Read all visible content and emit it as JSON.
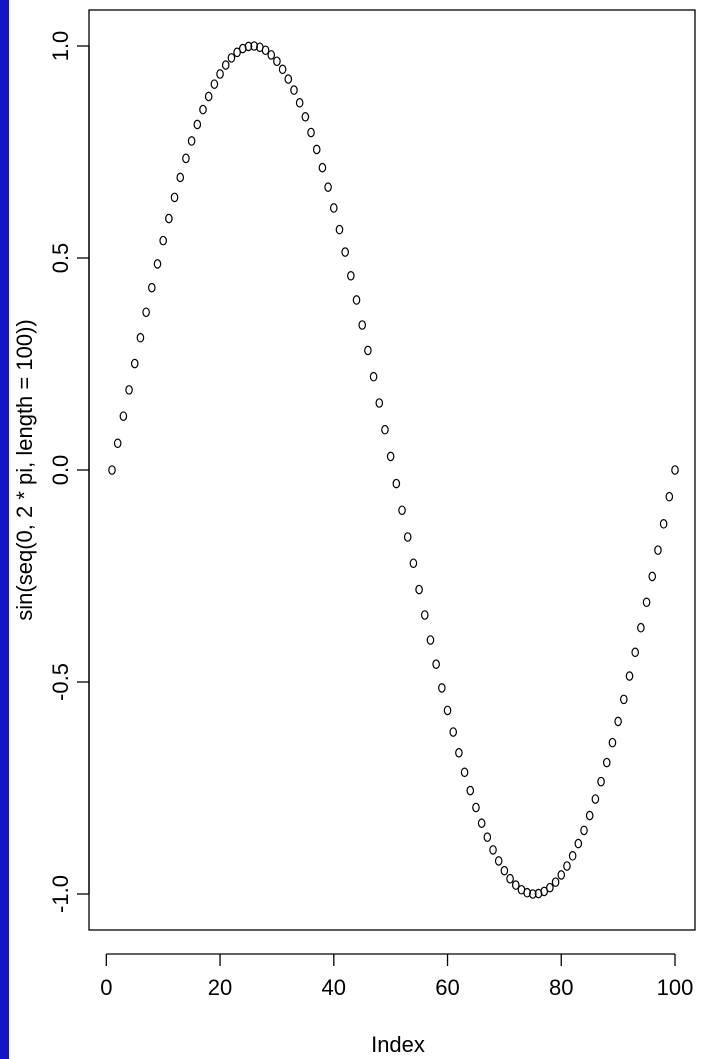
{
  "chart_data": {
    "type": "scatter",
    "title": "",
    "xlabel": "Index",
    "ylabel": "sin(seq(0, 2 * pi, length = 100))",
    "x_range": [
      1,
      100
    ],
    "y_range": [
      -1,
      1
    ],
    "x_ticks": [
      0,
      20,
      40,
      60,
      80,
      100
    ],
    "x_tick_labels": [
      "0",
      "20",
      "40",
      "60",
      "80",
      "100"
    ],
    "y_ticks": [
      -1.0,
      -0.5,
      0.0,
      0.5,
      1.0
    ],
    "y_tick_labels": [
      "-1.0",
      "-0.5",
      "0.0",
      "0.5",
      "1.0"
    ],
    "grid": false,
    "marker": "open-circle",
    "series": [
      {
        "x": [
          1,
          2,
          3,
          4,
          5,
          6,
          7,
          8,
          9,
          10,
          11,
          12,
          13,
          14,
          15,
          16,
          17,
          18,
          19,
          20,
          21,
          22,
          23,
          24,
          25,
          26,
          27,
          28,
          29,
          30,
          31,
          32,
          33,
          34,
          35,
          36,
          37,
          38,
          39,
          40,
          41,
          42,
          43,
          44,
          45,
          46,
          47,
          48,
          49,
          50,
          51,
          52,
          53,
          54,
          55,
          56,
          57,
          58,
          59,
          60,
          61,
          62,
          63,
          64,
          65,
          66,
          67,
          68,
          69,
          70,
          71,
          72,
          73,
          74,
          75,
          76,
          77,
          78,
          79,
          80,
          81,
          82,
          83,
          84,
          85,
          86,
          87,
          88,
          89,
          90,
          91,
          92,
          93,
          94,
          95,
          96,
          97,
          98,
          99,
          100
        ],
        "y": [
          0.0,
          0.063,
          0.127,
          0.189,
          0.251,
          0.312,
          0.372,
          0.43,
          0.486,
          0.541,
          0.593,
          0.643,
          0.69,
          0.735,
          0.776,
          0.815,
          0.85,
          0.881,
          0.91,
          0.934,
          0.955,
          0.972,
          0.985,
          0.994,
          0.999,
          1.0,
          0.997,
          0.99,
          0.979,
          0.964,
          0.945,
          0.922,
          0.896,
          0.866,
          0.833,
          0.796,
          0.756,
          0.713,
          0.667,
          0.618,
          0.567,
          0.514,
          0.458,
          0.401,
          0.342,
          0.282,
          0.22,
          0.158,
          0.095,
          0.032,
          -0.032,
          -0.095,
          -0.158,
          -0.22,
          -0.282,
          -0.342,
          -0.401,
          -0.458,
          -0.514,
          -0.567,
          -0.618,
          -0.667,
          -0.713,
          -0.756,
          -0.796,
          -0.833,
          -0.866,
          -0.896,
          -0.922,
          -0.945,
          -0.964,
          -0.979,
          -0.99,
          -0.997,
          -1.0,
          -0.999,
          -0.994,
          -0.985,
          -0.972,
          -0.955,
          -0.934,
          -0.91,
          -0.881,
          -0.85,
          -0.815,
          -0.776,
          -0.735,
          -0.69,
          -0.643,
          -0.593,
          -0.541,
          -0.486,
          -0.43,
          -0.372,
          -0.312,
          -0.251,
          -0.189,
          -0.127,
          -0.063,
          0.0
        ]
      }
    ]
  }
}
